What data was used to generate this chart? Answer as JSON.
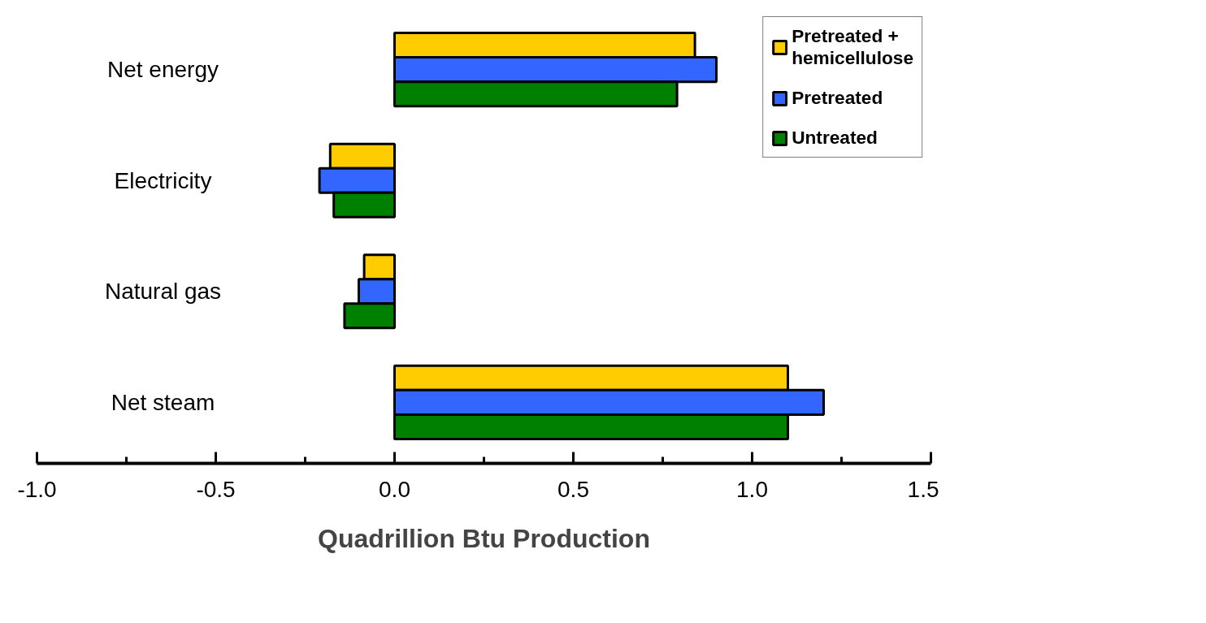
{
  "chart_data": {
    "type": "bar",
    "orientation": "horizontal",
    "xlabel": "Quadrillion Btu Production",
    "categories": [
      "Net energy",
      "Electricity",
      "Natural gas",
      "Net steam"
    ],
    "series": [
      {
        "name": "Pretreated + hemicellulose",
        "color": "#ffcc00",
        "values": [
          0.84,
          -0.18,
          -0.085,
          1.1
        ]
      },
      {
        "name": "Pretreated",
        "color": "#3366ff",
        "values": [
          0.9,
          -0.21,
          -0.1,
          1.2
        ]
      },
      {
        "name": "Untreated",
        "color": "#008000",
        "values": [
          0.79,
          -0.17,
          -0.14,
          1.1
        ]
      }
    ],
    "xlim": [
      -1.0,
      1.5
    ],
    "xticks": [
      {
        "value": -1.0,
        "label": "-1.0"
      },
      {
        "value": -0.75,
        "label": null
      },
      {
        "value": -0.5,
        "label": "-0.5"
      },
      {
        "value": -0.25,
        "label": null
      },
      {
        "value": 0,
        "label": "0.0"
      },
      {
        "value": 0.25,
        "label": null
      },
      {
        "value": 0.5,
        "label": "0.5"
      },
      {
        "value": 0.75,
        "label": null
      },
      {
        "value": 1.0,
        "label": "1.0"
      },
      {
        "value": 1.25,
        "label": null
      },
      {
        "value": 1.5,
        "label": "1.5"
      }
    ],
    "grid": false,
    "legend": "right"
  }
}
